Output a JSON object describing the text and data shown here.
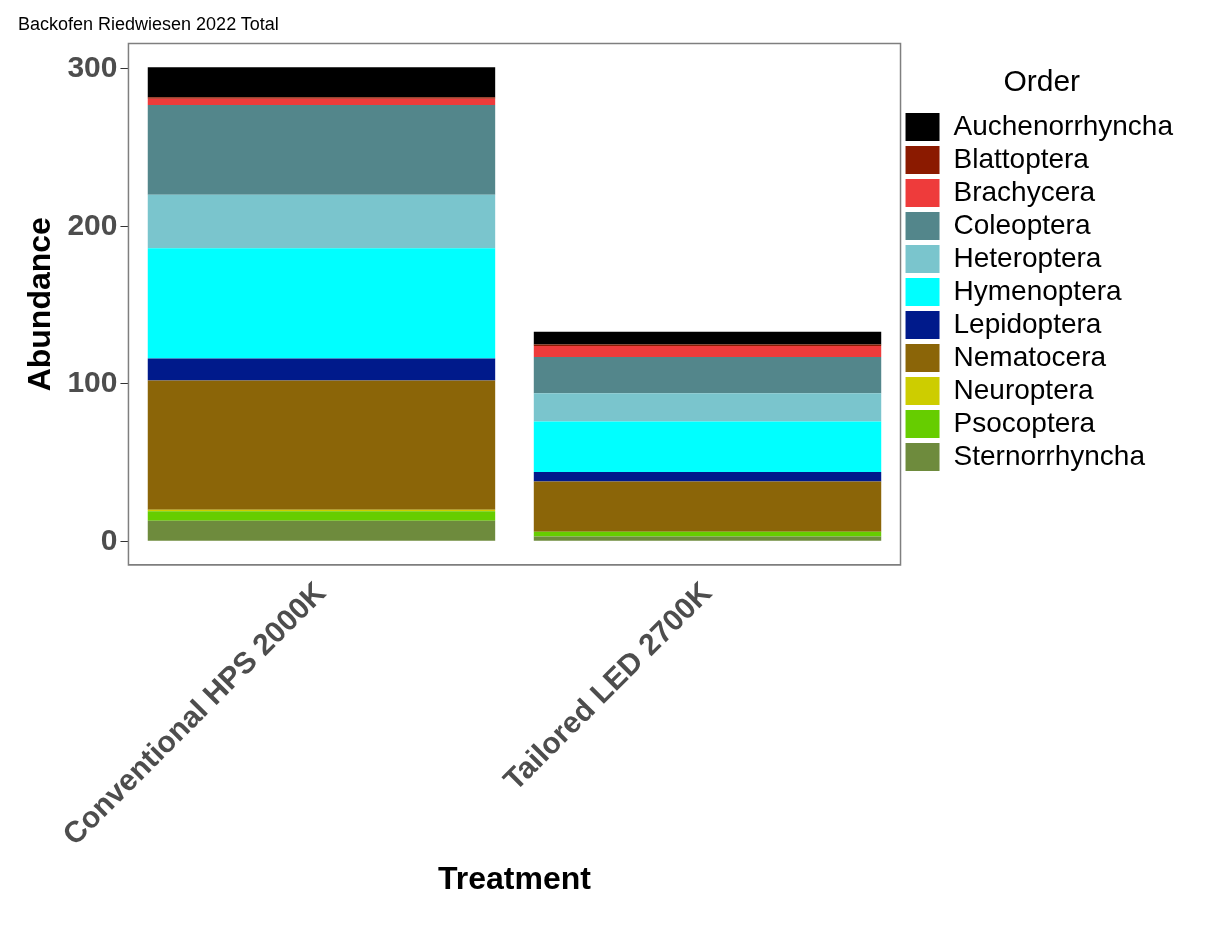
{
  "chart_data": {
    "type": "bar",
    "title": "Backofen Riedwiesen 2022 Total",
    "xlabel": "Treatment",
    "ylabel": "Abundance",
    "legend_title": "Order",
    "categories": [
      "Conventional HPS 2000K",
      "Tailored LED 2700K"
    ],
    "stacked": true,
    "legend": "right",
    "grid": false,
    "ylim": [
      -15,
      316
    ],
    "yticks": [
      0,
      100,
      200,
      300
    ],
    "series": [
      {
        "name": "Sternorrhyncha",
        "color": "#6e8b3d",
        "values": [
          13,
          3
        ]
      },
      {
        "name": "Psocoptera",
        "color": "#66cd00",
        "values": [
          6,
          3
        ]
      },
      {
        "name": "Neuroptera",
        "color": "#cdcd00",
        "values": [
          1,
          0
        ]
      },
      {
        "name": "Nematocera",
        "color": "#8b6508",
        "values": [
          82,
          32
        ]
      },
      {
        "name": "Lepidoptera",
        "color": "#001a8b",
        "values": [
          14,
          6
        ]
      },
      {
        "name": "Hymenoptera",
        "color": "#00ffff",
        "values": [
          70,
          32
        ]
      },
      {
        "name": "Heteroptera",
        "color": "#7ac5cd",
        "values": [
          34,
          18
        ]
      },
      {
        "name": "Coleoptera",
        "color": "#53868b",
        "values": [
          57,
          23
        ]
      },
      {
        "name": "Brachycera",
        "color": "#ee3b3b",
        "values": [
          4,
          7
        ]
      },
      {
        "name": "Blattoptera",
        "color": "#8b1a00",
        "values": [
          1,
          1
        ]
      },
      {
        "name": "Auchenorrhyncha",
        "color": "#000000",
        "values": [
          19,
          8
        ]
      }
    ]
  }
}
